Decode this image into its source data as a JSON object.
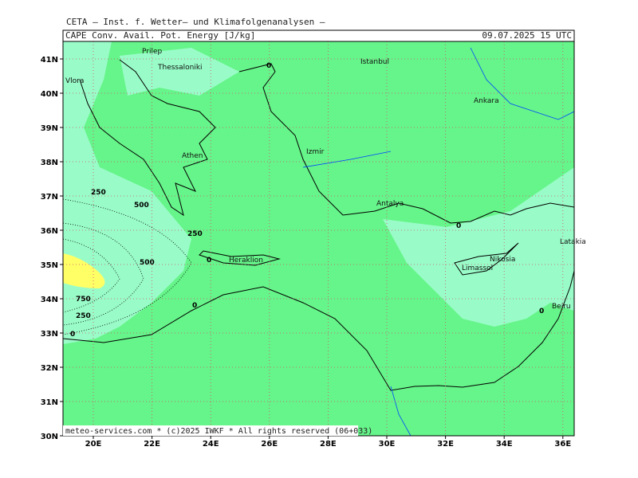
{
  "header": {
    "institute": "CETA – Inst. f. Wetter– und Klimafolgenanalysen –",
    "parameter": "CAPE Conv. Avail. Pot. Energy [J/kg]",
    "datetime": "09.07.2025 15 UTC"
  },
  "lon_labels": [
    "20E",
    "22E",
    "24E",
    "26E",
    "28E",
    "30E",
    "32E",
    "34E",
    "36E"
  ],
  "lat_labels": [
    "41N",
    "40N",
    "39N",
    "38N",
    "37N",
    "36N",
    "35N",
    "34N",
    "33N",
    "32N",
    "31N",
    "30N"
  ],
  "places": [
    "Prilep",
    "Thessaloniki",
    "Vlora",
    "Istanbul",
    "Ankara",
    "Athen",
    "Izmir",
    "Antalya",
    "Heraklion",
    "Nikosia",
    "Limassol",
    "Latakia",
    "Beiru"
  ],
  "contour_labels": [
    "250",
    "500",
    "250",
    "0",
    "500",
    "750",
    "250",
    "0",
    "0",
    "0",
    "0",
    "0"
  ],
  "footer": "meteo-services.com * (c)2025 IWKF * All rights reserved (06+033)"
}
